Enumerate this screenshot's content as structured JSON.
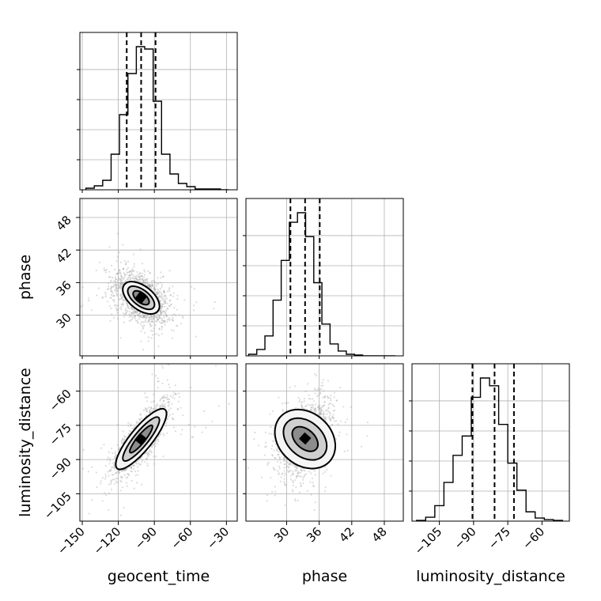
{
  "chart_data": {
    "type": "corner",
    "parameters": [
      "geocent_time",
      "phase",
      "luminosity_distance"
    ],
    "axis_labels": {
      "x": [
        "geocent_time",
        "phase",
        "luminosity_distance"
      ],
      "y": [
        "",
        "phase",
        "luminosity_distance"
      ]
    },
    "grid": true,
    "ranges": {
      "geocent_time": [
        -152,
        -21
      ],
      "phase": [
        22.5,
        51.5
      ],
      "luminosity_distance": [
        -117,
        -48
      ]
    },
    "ticks": {
      "geocent_time": {
        "values": [
          -150,
          -120,
          -90,
          -60,
          -30
        ],
        "labels": [
          "−150",
          "−120",
          "−90",
          "−60",
          "−30"
        ]
      },
      "phase": {
        "values": [
          30,
          36,
          42,
          48
        ],
        "labels": [
          "30",
          "36",
          "42",
          "48"
        ]
      },
      "luminosity_distance": {
        "values": [
          -105,
          -90,
          -75,
          -60
        ],
        "labels": [
          "−105",
          "−90",
          "−75",
          "−60"
        ]
      }
    },
    "histograms": [
      {
        "parameter": "geocent_time",
        "bin_edges": [
          -147,
          -140,
          -133,
          -126,
          -119,
          -112,
          -105,
          -98,
          -91,
          -84,
          -77,
          -70,
          -63,
          -56,
          -49,
          -42,
          -35,
          -28
        ],
        "counts": [
          2,
          5,
          12,
          45,
          95,
          147,
          181,
          178,
          112,
          45,
          20,
          8,
          4,
          1,
          1,
          1,
          0
        ],
        "quantiles": [
          -113,
          -101,
          -89
        ]
      },
      {
        "parameter": "phase",
        "bin_edges": [
          23,
          24.5,
          26,
          27.5,
          29,
          30.5,
          32,
          33.5,
          35,
          36.5,
          38,
          39.5,
          41,
          42.5,
          44,
          45.5,
          47,
          48.5,
          50
        ],
        "counts": [
          2,
          8,
          25,
          70,
          120,
          168,
          180,
          150,
          92,
          40,
          15,
          6,
          2,
          1,
          0,
          0,
          0,
          0
        ],
        "quantiles": [
          30.7,
          33.4,
          36.1
        ]
      },
      {
        "parameter": "luminosity_distance",
        "bin_edges": [
          -115,
          -111,
          -107,
          -103,
          -99,
          -95,
          -91,
          -87,
          -83,
          -79,
          -75,
          -71,
          -67,
          -63,
          -59,
          -55,
          -51
        ],
        "counts": [
          1,
          5,
          20,
          50,
          85,
          110,
          160,
          185,
          175,
          125,
          75,
          40,
          12,
          4,
          2,
          1
        ],
        "quantiles": [
          -90.5,
          -80.8,
          -72.3
        ]
      }
    ],
    "scatter_2d": [
      {
        "x": "geocent_time",
        "y": "phase",
        "center": [
          -101,
          33.2
        ],
        "sd": [
          12,
          2.5
        ],
        "correlation": -0.45,
        "contour_levels": [
          {
            "rx": 27,
            "ry": 15,
            "fill": "#f5f5f5"
          },
          {
            "rx": 20,
            "ry": 10,
            "fill": "#cfcfcf"
          },
          {
            "rx": 12,
            "ry": 6,
            "fill": "#8c8c8c"
          }
        ],
        "angle_deg": 38
      },
      {
        "x": "geocent_time",
        "y": "luminosity_distance",
        "center": [
          -101,
          -81
        ],
        "sd": [
          12,
          8.5
        ],
        "correlation": 0.85,
        "contour_levels": [
          {
            "rx": 48,
            "ry": 14,
            "fill": "#f5f5f5"
          },
          {
            "rx": 35,
            "ry": 9,
            "fill": "#cfcfcf"
          },
          {
            "rx": 22,
            "ry": 5,
            "fill": "#8c8c8c"
          }
        ],
        "angle_deg": -51
      },
      {
        "x": "phase",
        "y": "luminosity_distance",
        "center": [
          33.4,
          -81
        ],
        "sd": [
          2.5,
          8.5
        ],
        "correlation": 0.35,
        "contour_levels": [
          {
            "rx": 42,
            "ry": 33,
            "fill": "#f5f5f5"
          },
          {
            "rx": 31,
            "ry": 22,
            "fill": "#cfcfcf"
          },
          {
            "rx": 19,
            "ry": 12,
            "fill": "#8c8c8c"
          }
        ],
        "angle_deg": 42
      }
    ]
  }
}
